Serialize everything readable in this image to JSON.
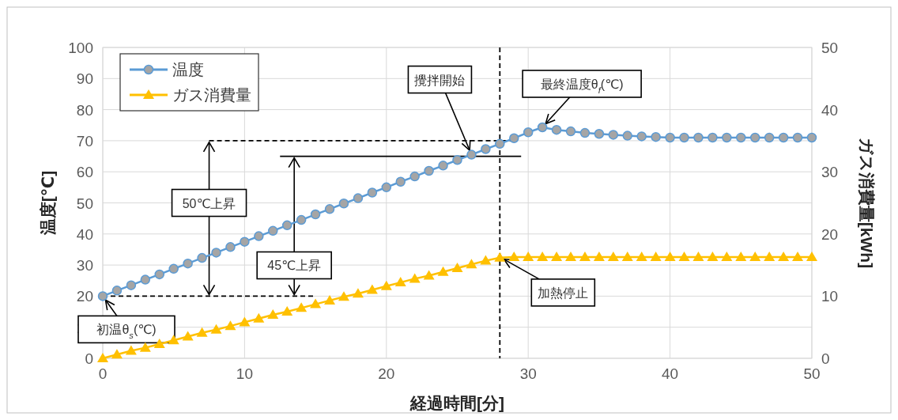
{
  "chart_data": {
    "type": "line",
    "xlabel": "経過時間[分]",
    "ylabel": "温度[℃]",
    "y2label": "ガス消費量[kWh]",
    "x": [
      0,
      1,
      2,
      3,
      4,
      5,
      6,
      7,
      8,
      9,
      10,
      11,
      12,
      13,
      14,
      15,
      16,
      17,
      18,
      19,
      20,
      21,
      22,
      23,
      24,
      25,
      26,
      27,
      28,
      29,
      30,
      31,
      32,
      33,
      34,
      35,
      36,
      37,
      38,
      39,
      40,
      41,
      42,
      43,
      44,
      45,
      46,
      47,
      48,
      49,
      50
    ],
    "series": [
      {
        "name": "温度",
        "color": "#5b9bd5",
        "marker": "circle",
        "values": [
          20,
          21.8,
          23.5,
          25.3,
          27,
          28.8,
          30.5,
          32.3,
          34,
          35.8,
          37.5,
          39.3,
          41,
          42.8,
          44.5,
          46.3,
          48,
          49.8,
          51.5,
          53.3,
          55,
          56.8,
          58.5,
          60.3,
          62,
          63.8,
          65.5,
          67.3,
          69,
          70.8,
          72.7,
          74.3,
          73.5,
          73,
          72.5,
          72.2,
          71.9,
          71.6,
          71.4,
          71.2,
          71,
          71,
          71,
          71,
          71,
          71,
          71,
          71,
          71,
          71,
          71
        ]
      },
      {
        "name": "ガス消費量",
        "color": "#ffc000",
        "marker": "triangle",
        "axis": "y2",
        "values": [
          0,
          0.6,
          1.2,
          1.7,
          2.3,
          2.9,
          3.5,
          4.1,
          4.6,
          5.2,
          5.8,
          6.4,
          7,
          7.5,
          8.1,
          8.7,
          9.3,
          9.9,
          10.4,
          11,
          11.6,
          12.2,
          12.8,
          13.3,
          13.9,
          14.5,
          15.1,
          15.7,
          16.2,
          16.3,
          16.3,
          16.3,
          16.3,
          16.3,
          16.3,
          16.3,
          16.3,
          16.3,
          16.3,
          16.3,
          16.3,
          16.3,
          16.3,
          16.3,
          16.3,
          16.3,
          16.3,
          16.3,
          16.3,
          16.3,
          16.3
        ]
      }
    ],
    "xlim": [
      0,
      50
    ],
    "xticks": [
      0,
      10,
      20,
      30,
      40,
      50
    ],
    "ylim": [
      0,
      100
    ],
    "yticks": [
      0,
      10,
      20,
      30,
      40,
      50,
      60,
      70,
      80,
      90,
      100
    ],
    "y2lim": [
      0,
      50
    ],
    "y2ticks": [
      0,
      10,
      20,
      30,
      40,
      50
    ],
    "grid": true,
    "legend": "top left",
    "ref_lines": [
      {
        "axis": "y",
        "value": 70,
        "color": "#000000",
        "line_style": "dashed"
      },
      {
        "axis": "y",
        "value": 65,
        "color": "#000000",
        "line_style": "solid"
      },
      {
        "axis": "y",
        "value": 20,
        "color": "#000000",
        "line_style": "dashed"
      },
      {
        "axis": "x",
        "value": 28,
        "color": "#000000",
        "line_style": "dashed"
      }
    ],
    "annotations": [
      "50℃上昇",
      "45℃上昇",
      {
        "text": "初温θ$_{s}$(℃)",
        "x": 0,
        "y": 20
      },
      {
        "text": "攪拌開始",
        "x": 26,
        "y": 65.5
      },
      {
        "text": "最終温度θ$_{f}$(℃)",
        "x": 31,
        "y": 74.3
      },
      {
        "text": "加熱停止",
        "x": 28,
        "y": 32.6
      }
    ]
  }
}
